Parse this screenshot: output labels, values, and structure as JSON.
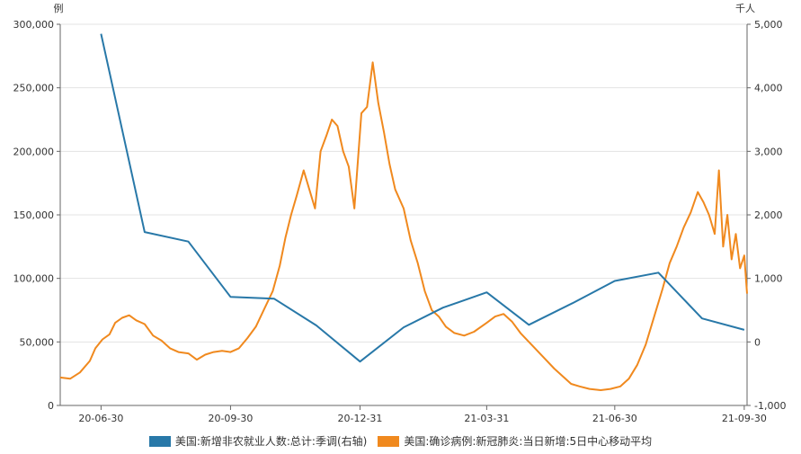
{
  "chart_data": {
    "type": "line",
    "left_axis": {
      "unit": "例",
      "ticks": [
        "0",
        "50,000",
        "100,000",
        "150,000",
        "200,000",
        "250,000",
        "300,000"
      ],
      "range": [
        0,
        300000
      ]
    },
    "right_axis": {
      "unit": "千人",
      "ticks": [
        "-1,000",
        "0",
        "1,000",
        "2,000",
        "3,000",
        "4,000",
        "5,000"
      ],
      "range": [
        -1000,
        5000
      ]
    },
    "x_axis": {
      "ticks": [
        "20-06-30",
        "20-09-30",
        "20-12-31",
        "21-03-31",
        "21-06-30",
        "21-09-30"
      ],
      "range": [
        "2020-06-01",
        "2021-10-02"
      ]
    },
    "grid": true,
    "series": [
      {
        "name": "美国:新增非农就业人数:总计:季调(右轴)",
        "color": "#2878a8",
        "axis": "right",
        "points": [
          [
            "2020-06-30",
            4850
          ],
          [
            "2020-07-31",
            1730
          ],
          [
            "2020-08-31",
            1580
          ],
          [
            "2020-09-30",
            710
          ],
          [
            "2020-10-31",
            680
          ],
          [
            "2020-11-30",
            260
          ],
          [
            "2020-12-31",
            -310
          ],
          [
            "2021-01-31",
            230
          ],
          [
            "2021-02-28",
            540
          ],
          [
            "2021-03-31",
            780
          ],
          [
            "2021-04-30",
            270
          ],
          [
            "2021-05-31",
            610
          ],
          [
            "2021-06-30",
            960
          ],
          [
            "2021-07-31",
            1090
          ],
          [
            "2021-08-31",
            370
          ],
          [
            "2021-09-30",
            190
          ]
        ]
      },
      {
        "name": "美国:确诊病例:新冠肺炎:当日新增:5日中心移动平均",
        "color": "#f0891e",
        "axis": "left",
        "points": [
          [
            "2020-06-01",
            22000
          ],
          [
            "2020-06-08",
            21000
          ],
          [
            "2020-06-15",
            26000
          ],
          [
            "2020-06-22",
            35000
          ],
          [
            "2020-06-26",
            45000
          ],
          [
            "2020-07-01",
            52000
          ],
          [
            "2020-07-06",
            56000
          ],
          [
            "2020-07-10",
            65000
          ],
          [
            "2020-07-15",
            69000
          ],
          [
            "2020-07-20",
            71000
          ],
          [
            "2020-07-25",
            67000
          ],
          [
            "2020-07-31",
            64000
          ],
          [
            "2020-08-06",
            55000
          ],
          [
            "2020-08-12",
            51000
          ],
          [
            "2020-08-18",
            45000
          ],
          [
            "2020-08-24",
            42000
          ],
          [
            "2020-08-31",
            41000
          ],
          [
            "2020-09-06",
            36000
          ],
          [
            "2020-09-12",
            40000
          ],
          [
            "2020-09-18",
            42000
          ],
          [
            "2020-09-24",
            43000
          ],
          [
            "2020-09-30",
            42000
          ],
          [
            "2020-10-06",
            45000
          ],
          [
            "2020-10-12",
            53000
          ],
          [
            "2020-10-18",
            62000
          ],
          [
            "2020-10-24",
            76000
          ],
          [
            "2020-10-30",
            90000
          ],
          [
            "2020-11-04",
            110000
          ],
          [
            "2020-11-08",
            132000
          ],
          [
            "2020-11-12",
            150000
          ],
          [
            "2020-11-16",
            165000
          ],
          [
            "2020-11-21",
            185000
          ],
          [
            "2020-11-25",
            170000
          ],
          [
            "2020-11-29",
            155000
          ],
          [
            "2020-12-03",
            200000
          ],
          [
            "2020-12-07",
            212000
          ],
          [
            "2020-12-11",
            225000
          ],
          [
            "2020-12-15",
            220000
          ],
          [
            "2020-12-19",
            200000
          ],
          [
            "2020-12-23",
            188000
          ],
          [
            "2020-12-27",
            155000
          ],
          [
            "2021-01-01",
            230000
          ],
          [
            "2021-01-05",
            235000
          ],
          [
            "2021-01-09",
            270000
          ],
          [
            "2021-01-13",
            238000
          ],
          [
            "2021-01-17",
            215000
          ],
          [
            "2021-01-21",
            190000
          ],
          [
            "2021-01-25",
            170000
          ],
          [
            "2021-01-31",
            155000
          ],
          [
            "2021-02-05",
            130000
          ],
          [
            "2021-02-10",
            112000
          ],
          [
            "2021-02-15",
            90000
          ],
          [
            "2021-02-20",
            75000
          ],
          [
            "2021-02-25",
            70000
          ],
          [
            "2021-03-02",
            62000
          ],
          [
            "2021-03-08",
            57000
          ],
          [
            "2021-03-15",
            55000
          ],
          [
            "2021-03-22",
            58000
          ],
          [
            "2021-03-31",
            65000
          ],
          [
            "2021-04-06",
            70000
          ],
          [
            "2021-04-12",
            72000
          ],
          [
            "2021-04-18",
            66000
          ],
          [
            "2021-04-24",
            57000
          ],
          [
            "2021-04-30",
            50000
          ],
          [
            "2021-05-06",
            43000
          ],
          [
            "2021-05-12",
            36000
          ],
          [
            "2021-05-18",
            29000
          ],
          [
            "2021-05-24",
            23000
          ],
          [
            "2021-05-30",
            17000
          ],
          [
            "2021-06-05",
            15000
          ],
          [
            "2021-06-12",
            13000
          ],
          [
            "2021-06-20",
            12000
          ],
          [
            "2021-06-27",
            13000
          ],
          [
            "2021-07-04",
            15000
          ],
          [
            "2021-07-10",
            21000
          ],
          [
            "2021-07-16",
            32000
          ],
          [
            "2021-07-22",
            48000
          ],
          [
            "2021-07-28",
            70000
          ],
          [
            "2021-08-03",
            92000
          ],
          [
            "2021-08-08",
            112000
          ],
          [
            "2021-08-13",
            125000
          ],
          [
            "2021-08-18",
            140000
          ],
          [
            "2021-08-23",
            152000
          ],
          [
            "2021-08-28",
            168000
          ],
          [
            "2021-09-01",
            160000
          ],
          [
            "2021-09-05",
            150000
          ],
          [
            "2021-09-09",
            135000
          ],
          [
            "2021-09-12",
            185000
          ],
          [
            "2021-09-15",
            125000
          ],
          [
            "2021-09-18",
            150000
          ],
          [
            "2021-09-21",
            115000
          ],
          [
            "2021-09-24",
            135000
          ],
          [
            "2021-09-27",
            108000
          ],
          [
            "2021-09-30",
            118000
          ],
          [
            "2021-10-02",
            88000
          ]
        ]
      }
    ]
  }
}
